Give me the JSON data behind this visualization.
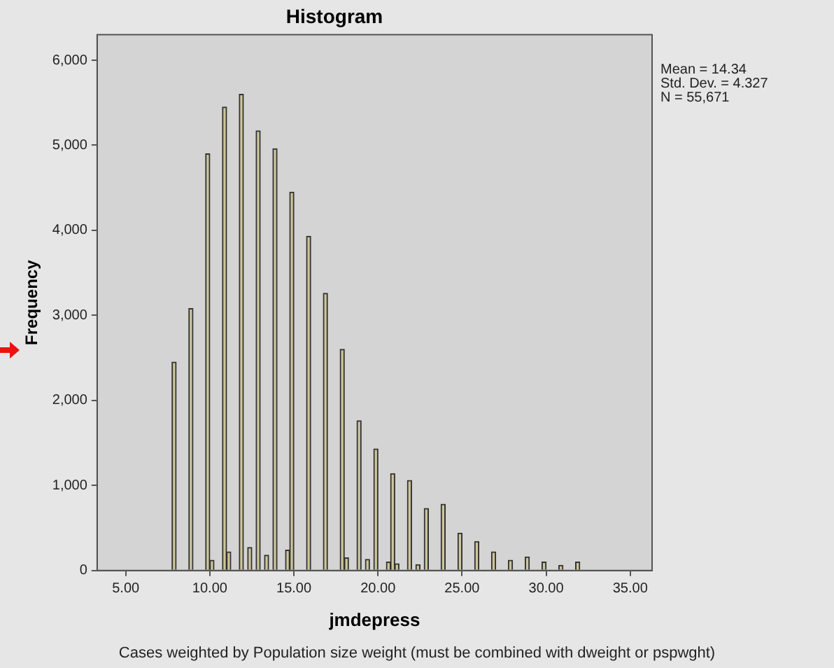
{
  "chart_data": {
    "type": "histogram",
    "title": "Histogram",
    "xlabel": "jmdepress",
    "ylabel": "Frequency",
    "bins": [
      7.75,
      8,
      8.25,
      8.5,
      8.75,
      9,
      9.25,
      9.5,
      9.75,
      10,
      10.25,
      10.5,
      10.75,
      11,
      11.25,
      11.5,
      11.75,
      12,
      12.25,
      12.5,
      12.75,
      13,
      13.25,
      13.5,
      13.75,
      14,
      14.25,
      14.5,
      14.75,
      15,
      15.25,
      15.5,
      15.75,
      16,
      16.25,
      16.5,
      16.75,
      17,
      17.25,
      17.5,
      17.75,
      18,
      18.25,
      18.5,
      18.75,
      19,
      19.25,
      19.5,
      19.75,
      20,
      20.25,
      20.5,
      20.75,
      21,
      21.25,
      21.5,
      21.75,
      22,
      22.25,
      22.5,
      22.75,
      23,
      23.25,
      23.5,
      23.75,
      24,
      24.25,
      24.5,
      24.75,
      25,
      25.25,
      25.5,
      25.75,
      26,
      26.25,
      26.5,
      26.75,
      27,
      27.25,
      27.5,
      27.75,
      28,
      28.25,
      28.5,
      28.75,
      29,
      29.25,
      29.5,
      29.75,
      30,
      30.25,
      30.5,
      30.75,
      31,
      31.25,
      31.5,
      31.75,
      32
    ],
    "values": [
      2450,
      0,
      0,
      0,
      3080,
      0,
      0,
      0,
      4900,
      120,
      0,
      0,
      5450,
      220,
      0,
      0,
      5600,
      0,
      270,
      0,
      5170,
      0,
      180,
      0,
      4960,
      0,
      0,
      240,
      4450,
      0,
      0,
      0,
      3930,
      0,
      0,
      0,
      3260,
      0,
      0,
      0,
      2600,
      150,
      0,
      0,
      1760,
      0,
      130,
      0,
      1430,
      0,
      0,
      100,
      1140,
      80,
      0,
      0,
      1060,
      0,
      70,
      0,
      730,
      0,
      0,
      0,
      780,
      0,
      0,
      0,
      440,
      0,
      0,
      0,
      340,
      0,
      0,
      0,
      220,
      0,
      0,
      0,
      120,
      0,
      0,
      0,
      160,
      0,
      0,
      0,
      100,
      0,
      0,
      0,
      60,
      0,
      0,
      0,
      100
    ],
    "color": "#cdc69a",
    "xlim": [
      3.3,
      36.3
    ],
    "xticks": [
      {
        "value": 5,
        "label": "5.00"
      },
      {
        "value": 10,
        "label": "10.00"
      },
      {
        "value": 15,
        "label": "15.00"
      },
      {
        "value": 20,
        "label": "20.00"
      },
      {
        "value": 25,
        "label": "25.00"
      },
      {
        "value": 30,
        "label": "30.00"
      },
      {
        "value": 35,
        "label": "35.00"
      }
    ],
    "ylim": [
      0,
      6300
    ],
    "yticks": [
      0,
      {
        "value": 1000,
        "label": "1,000"
      },
      {
        "value": 2000,
        "label": "2,000"
      },
      {
        "value": 3000,
        "label": "3,000"
      },
      {
        "value": 4000,
        "label": "4,000"
      },
      {
        "value": 5000,
        "label": "5,000"
      },
      {
        "value": 6000,
        "label": "6,000"
      }
    ],
    "grid": false,
    "legend": false,
    "annotations": [
      "Mean = 14.34",
      "Std. Dev. = 4.327",
      "N = 55,671",
      "Cases weighted by Population size weight (must be combined with dweight or pspwght)"
    ]
  }
}
